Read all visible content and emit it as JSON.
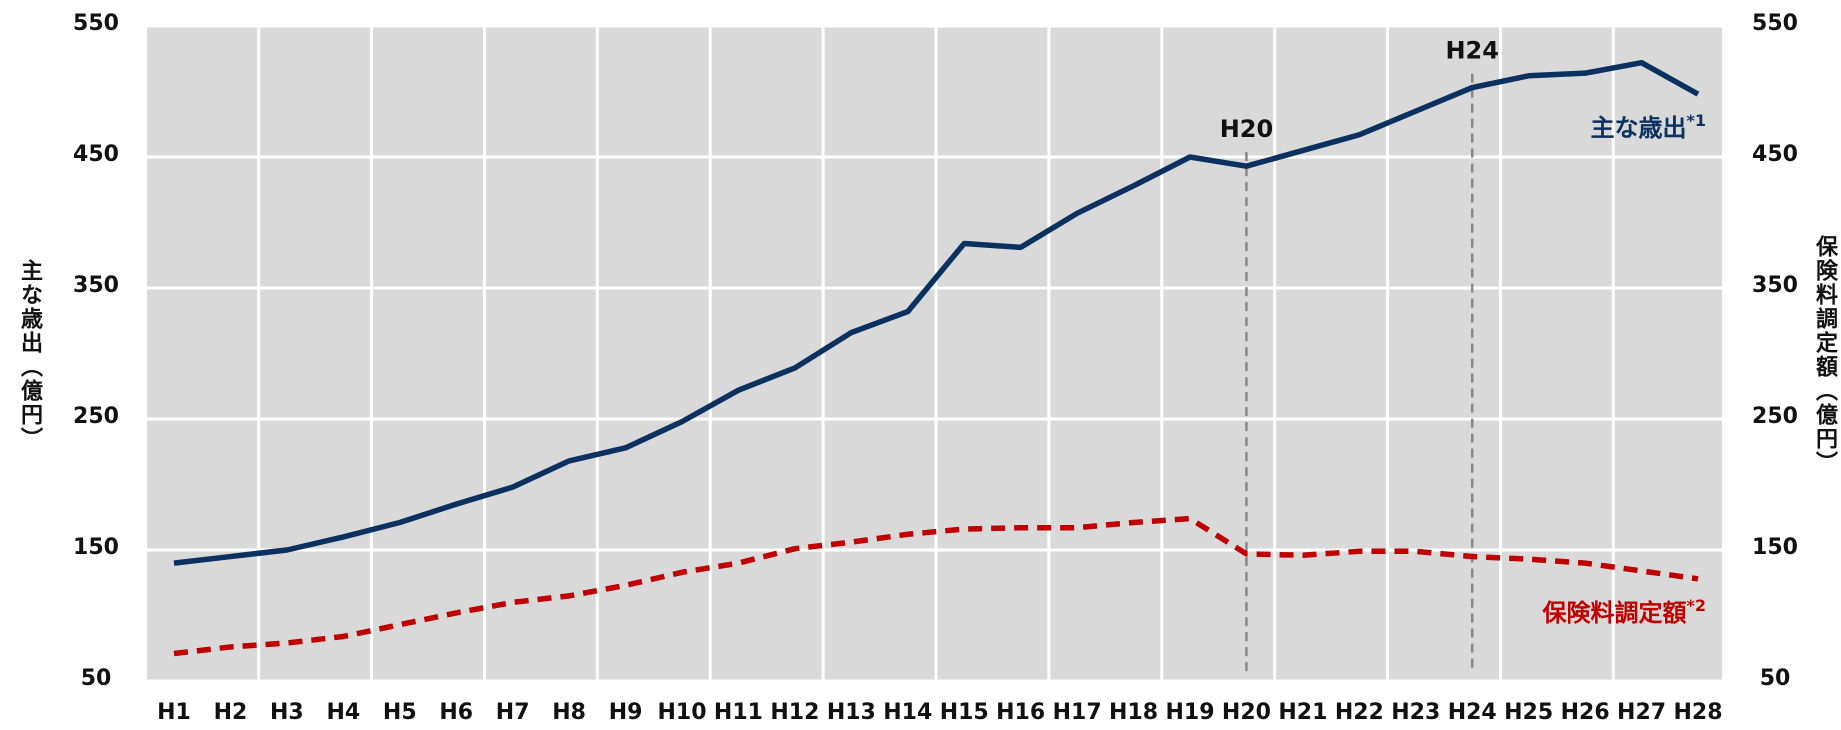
{
  "chart_data": {
    "type": "line",
    "categories": [
      "H1",
      "H2",
      "H3",
      "H4",
      "H5",
      "H6",
      "H7",
      "H8",
      "H9",
      "H10",
      "H11",
      "H12",
      "H13",
      "H14",
      "H15",
      "H16",
      "H17",
      "H18",
      "H19",
      "H20",
      "H21",
      "H22",
      "H23",
      "H24",
      "H25",
      "H26",
      "H27",
      "H28"
    ],
    "series": [
      {
        "name": "主な歳出",
        "marker": "*1",
        "color": "#0b3160",
        "axis": "y",
        "dashed": false,
        "values": [
          140,
          145,
          150,
          160,
          171,
          185,
          198,
          218,
          228,
          248,
          272,
          289,
          316,
          332,
          384,
          381,
          407,
          428,
          450,
          443,
          455,
          467,
          485,
          503,
          512,
          514,
          522,
          498
        ]
      },
      {
        "name": "保険料調定額",
        "marker": "*2",
        "color": "#c00000",
        "axis": "y2",
        "dashed": true,
        "values": [
          71,
          76,
          79,
          84,
          93,
          102,
          110,
          115,
          123,
          133,
          140,
          151,
          156,
          162,
          166,
          167,
          167,
          171,
          174,
          147,
          146,
          149,
          149,
          145,
          143,
          140,
          134,
          128
        ]
      }
    ],
    "ylabel": "主な歳出（億円）",
    "y2label": "保険料調定額（億円）",
    "ylim": [
      50,
      550
    ],
    "yticks": [
      50,
      150,
      250,
      350,
      450,
      550
    ],
    "y2lim": [
      50,
      550
    ],
    "y2ticks": [
      50,
      150,
      250,
      350,
      450,
      550
    ],
    "annotations": [
      {
        "label": "H20",
        "x": "H20"
      },
      {
        "label": "H24",
        "x": "H24"
      }
    ],
    "grid": true
  }
}
